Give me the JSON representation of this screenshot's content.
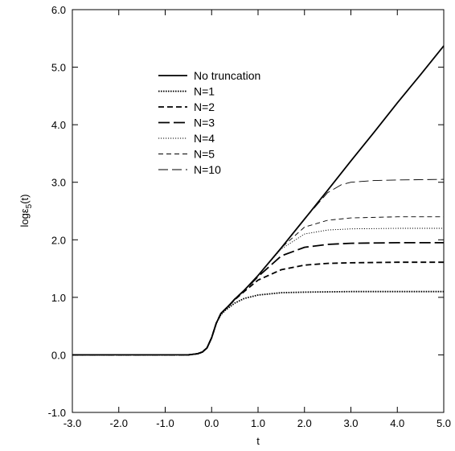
{
  "chart_data": {
    "type": "line",
    "xlabel": "t",
    "ylabel": "logε",
    "ylabel_subscript": "5",
    "ylabel_suffix": "(t)",
    "xlim": [
      -3.0,
      5.0
    ],
    "ylim": [
      -1.0,
      6.0
    ],
    "x_ticks": [
      -3.0,
      -2.0,
      -1.0,
      0.0,
      1.0,
      2.0,
      3.0,
      4.0,
      5.0
    ],
    "x_tick_labels": [
      "-3.0",
      "-2.0",
      "-1.0",
      "0.0",
      "1.0",
      "2.0",
      "3.0",
      "4.0",
      "5.0"
    ],
    "y_ticks": [
      -1.0,
      0.0,
      1.0,
      2.0,
      3.0,
      4.0,
      5.0,
      6.0
    ],
    "y_tick_labels": [
      "-1.0",
      "0.0",
      "1.0",
      "2.0",
      "3.0",
      "4.0",
      "5.0",
      "6.0"
    ],
    "grid": false,
    "legend_position": "upper-left",
    "series": [
      {
        "name": "No truncation",
        "style": "solid",
        "weight": "thick",
        "x": [
          -3.0,
          -2.0,
          -1.0,
          -0.5,
          -0.3,
          -0.2,
          -0.1,
          0.0,
          0.1,
          0.2,
          0.3,
          0.4,
          0.5,
          0.7,
          1.0,
          1.5,
          2.0,
          2.5,
          3.0,
          3.5,
          4.0,
          4.5,
          5.0
        ],
        "y": [
          0.0,
          0.0,
          0.0,
          0.0,
          0.02,
          0.05,
          0.12,
          0.3,
          0.55,
          0.72,
          0.8,
          0.88,
          0.97,
          1.12,
          1.38,
          1.86,
          2.36,
          2.86,
          3.37,
          3.87,
          4.38,
          4.87,
          5.37
        ]
      },
      {
        "name": "N=1",
        "style": "dotted",
        "weight": "thick",
        "x": [
          -3.0,
          -0.5,
          -0.3,
          -0.2,
          -0.1,
          0.0,
          0.1,
          0.2,
          0.3,
          0.4,
          0.5,
          0.7,
          1.0,
          1.5,
          2.0,
          3.0,
          4.0,
          5.0
        ],
        "y": [
          0.0,
          0.0,
          0.02,
          0.05,
          0.12,
          0.3,
          0.55,
          0.7,
          0.78,
          0.84,
          0.9,
          0.98,
          1.04,
          1.08,
          1.09,
          1.1,
          1.1,
          1.1
        ]
      },
      {
        "name": "N=2",
        "style": "dashed",
        "weight": "thick",
        "x": [
          -3.0,
          -0.5,
          -0.3,
          -0.2,
          -0.1,
          0.0,
          0.1,
          0.2,
          0.3,
          0.4,
          0.5,
          0.7,
          1.0,
          1.5,
          2.0,
          2.5,
          3.0,
          4.0,
          5.0
        ],
        "y": [
          0.0,
          0.0,
          0.02,
          0.05,
          0.12,
          0.3,
          0.55,
          0.72,
          0.8,
          0.88,
          0.96,
          1.1,
          1.3,
          1.48,
          1.56,
          1.59,
          1.6,
          1.61,
          1.61
        ]
      },
      {
        "name": "N=3",
        "style": "longdash",
        "weight": "thick",
        "x": [
          -3.0,
          -0.5,
          -0.3,
          -0.2,
          -0.1,
          0.0,
          0.1,
          0.2,
          0.3,
          0.4,
          0.5,
          0.7,
          1.0,
          1.5,
          2.0,
          2.5,
          3.0,
          4.0,
          5.0
        ],
        "y": [
          0.0,
          0.0,
          0.02,
          0.05,
          0.12,
          0.3,
          0.55,
          0.72,
          0.8,
          0.88,
          0.97,
          1.12,
          1.36,
          1.72,
          1.87,
          1.92,
          1.94,
          1.95,
          1.95
        ]
      },
      {
        "name": "N=4",
        "style": "dotted",
        "weight": "thin",
        "x": [
          -3.0,
          -0.5,
          -0.3,
          -0.2,
          -0.1,
          0.0,
          0.1,
          0.2,
          0.3,
          0.4,
          0.5,
          0.7,
          1.0,
          1.5,
          2.0,
          2.5,
          3.0,
          4.0,
          5.0
        ],
        "y": [
          0.0,
          0.0,
          0.02,
          0.05,
          0.12,
          0.3,
          0.55,
          0.72,
          0.8,
          0.88,
          0.97,
          1.12,
          1.38,
          1.84,
          2.1,
          2.17,
          2.19,
          2.2,
          2.2
        ]
      },
      {
        "name": "N=5",
        "style": "dashed",
        "weight": "thin",
        "x": [
          -3.0,
          -0.5,
          -0.3,
          -0.2,
          -0.1,
          0.0,
          0.1,
          0.2,
          0.3,
          0.4,
          0.5,
          0.7,
          1.0,
          1.5,
          2.0,
          2.5,
          3.0,
          4.0,
          5.0
        ],
        "y": [
          0.0,
          0.0,
          0.02,
          0.05,
          0.12,
          0.3,
          0.55,
          0.72,
          0.8,
          0.88,
          0.97,
          1.12,
          1.38,
          1.86,
          2.22,
          2.34,
          2.38,
          2.4,
          2.4
        ]
      },
      {
        "name": "N=10",
        "style": "longdash",
        "weight": "thin",
        "x": [
          -3.0,
          -0.5,
          -0.3,
          -0.2,
          -0.1,
          0.0,
          0.1,
          0.2,
          0.3,
          0.4,
          0.5,
          0.7,
          1.0,
          1.5,
          2.0,
          2.5,
          2.8,
          3.0,
          3.5,
          4.0,
          5.0
        ],
        "y": [
          0.0,
          0.0,
          0.02,
          0.05,
          0.12,
          0.3,
          0.55,
          0.72,
          0.8,
          0.88,
          0.97,
          1.12,
          1.38,
          1.86,
          2.36,
          2.82,
          2.96,
          3.0,
          3.03,
          3.04,
          3.05
        ]
      }
    ]
  }
}
